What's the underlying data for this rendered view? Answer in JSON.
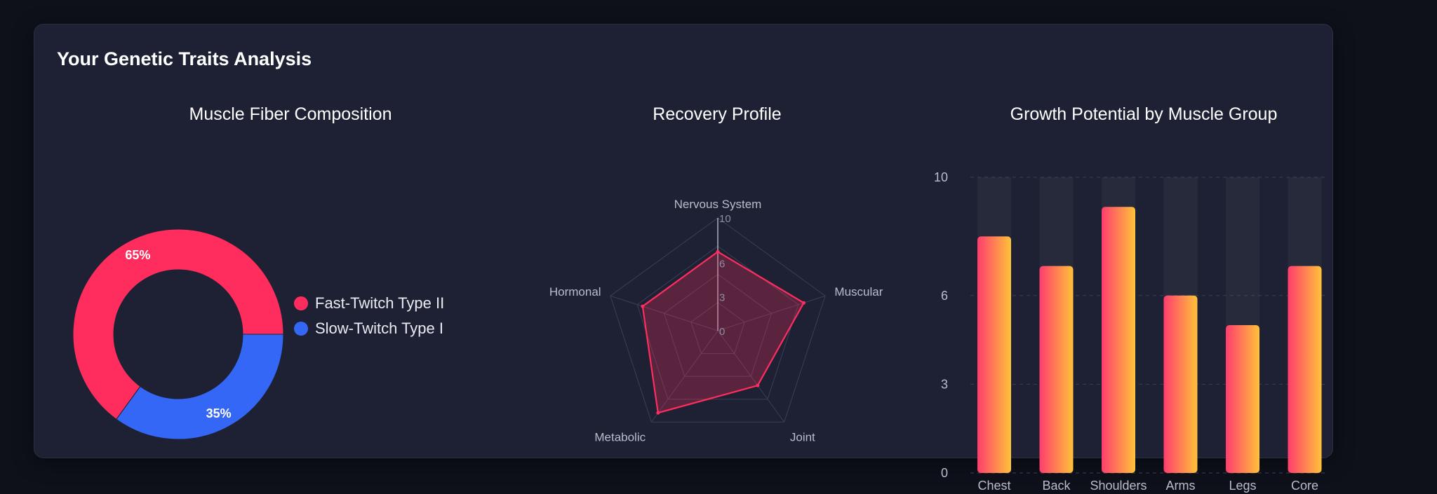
{
  "dashboard": {
    "title": "Your Genetic Traits Analysis"
  },
  "chart_data": [
    {
      "type": "pie",
      "title": "Muscle Fiber Composition",
      "donut": true,
      "slices": [
        {
          "label": "Fast-Twitch Type II",
          "value": 65,
          "display": "65%",
          "color": "#ff2d5e"
        },
        {
          "label": "Slow-Twitch Type I",
          "value": 35,
          "display": "35%",
          "color": "#3567f6"
        }
      ],
      "legend": "right"
    },
    {
      "type": "radar",
      "title": "Recovery Profile",
      "axes": [
        "Nervous System",
        "Muscular",
        "Joint",
        "Metabolic",
        "Hormonal"
      ],
      "values": [
        7,
        8,
        6,
        9,
        7
      ],
      "range": [
        0,
        10
      ],
      "ticks": [
        "0",
        "3",
        "6",
        "10"
      ],
      "tick_values": [
        0,
        3,
        6,
        10
      ],
      "color": "#ff2d5e"
    },
    {
      "type": "bar",
      "title": "Growth Potential by Muscle Group",
      "categories": [
        "Chest",
        "Back",
        "Shoulders",
        "Arms",
        "Legs",
        "Core"
      ],
      "values": [
        8,
        7,
        9,
        6,
        5,
        7
      ],
      "ylim": [
        0,
        10
      ],
      "yticks": [
        "0",
        "3",
        "6",
        "10"
      ],
      "ytick_values": [
        0,
        3,
        6,
        10
      ],
      "grid": true,
      "gradient": [
        "#ff3d6e",
        "#ffc23a"
      ]
    }
  ]
}
